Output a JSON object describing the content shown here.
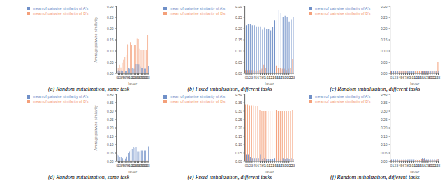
{
  "chart_data": [
    {
      "type": "bar",
      "title": "(a) Random initialization, same task",
      "xlabel": "layer",
      "ylabel": "Average pairwise similarity",
      "categories": [
        "0",
        "1",
        "2",
        "3",
        "4",
        "5",
        "6",
        "7",
        "8",
        "9",
        "10",
        "11",
        "12",
        "13",
        "14",
        "15",
        "16",
        "17",
        "18",
        "19",
        "20",
        "21",
        "22",
        "23"
      ],
      "series": [
        {
          "name": "mean of pairwise similarity of B's",
          "color": "#F4A07A",
          "values": [
            0.02,
            0.025,
            0.038,
            0.026,
            0.048,
            0.06,
            0.075,
            0.082,
            0.13,
            0.118,
            0.14,
            0.128,
            0.138,
            0.127,
            0.128,
            0.155,
            0.153,
            0.11,
            0.105,
            0.105,
            0.104,
            0.104,
            0.104,
            0.172
          ]
        },
        {
          "name": "mean of pairwise similarity of A's",
          "color": "#7090C8",
          "values": [
            0.01,
            0.014,
            0.01,
            0.013,
            0.01,
            0.01,
            0.01,
            0.01,
            0.024,
            0.02,
            0.02,
            0.025,
            0.02,
            0.02,
            0.044,
            0.044,
            0.04,
            0.03,
            0.025,
            0.025,
            0.02,
            0.02,
            0.02,
            0.033
          ]
        }
      ],
      "ylim": [
        0,
        0.3
      ],
      "yticks": [
        {
          "value": 0,
          "label": "0.00"
        },
        0.05,
        {
          "value": 0.1,
          "label": "0.10"
        },
        0.15,
        {
          "value": 0.2,
          "label": "0.20"
        },
        0.25,
        {
          "value": 0.3,
          "label": "0.30"
        }
      ],
      "legend": "upper left",
      "grid": false
    },
    {
      "type": "bar",
      "title": "(b) Fixed initialization, different tasks",
      "xlabel": "layer",
      "categories": [
        "0",
        "1",
        "2",
        "3",
        "4",
        "5",
        "6",
        "7",
        "8",
        "9",
        "10",
        "11",
        "12",
        "13",
        "14",
        "15",
        "16",
        "17",
        "18",
        "19",
        "20",
        "21",
        "22",
        "23"
      ],
      "series": [
        {
          "name": "mean of pairwise similarity of B's",
          "color": "#F4A07A",
          "values": [
            0.015,
            0.015,
            0.015,
            0.015,
            0.015,
            0.013,
            0.013,
            0.015,
            0.02,
            0.038,
            0.025,
            0.025,
            0.025,
            0.025,
            0.04,
            0.035,
            0.025,
            0.025,
            0.02,
            0.02,
            0.015,
            0.02,
            0.025,
            0.065
          ]
        },
        {
          "name": "mean of pairwise similarity of A's",
          "color": "#7090C8",
          "values": [
            0.215,
            0.22,
            0.222,
            0.215,
            0.215,
            0.21,
            0.21,
            0.21,
            0.195,
            0.205,
            0.2,
            0.197,
            0.192,
            0.207,
            0.237,
            0.242,
            0.282,
            0.272,
            0.252,
            0.257,
            0.252,
            0.232,
            0.242,
            0.252
          ]
        }
      ],
      "ylim": [
        0,
        0.3
      ],
      "yticks": [
        {
          "value": 0,
          "label": "0.00"
        },
        0.05,
        {
          "value": 0.1,
          "label": "0.10"
        },
        0.15,
        {
          "value": 0.2,
          "label": "0.20"
        },
        0.25,
        {
          "value": 0.3,
          "label": "0.30"
        }
      ],
      "legend": "upper left",
      "grid": false
    },
    {
      "type": "bar",
      "title": "(c) Random initialization, different tasks",
      "xlabel": "layer",
      "categories": [
        "0",
        "1",
        "2",
        "3",
        "4",
        "5",
        "6",
        "7",
        "8",
        "9",
        "10",
        "11",
        "12",
        "13",
        "14",
        "15",
        "16",
        "17",
        "18",
        "19",
        "20",
        "21",
        "22",
        "23"
      ],
      "series": [
        {
          "name": "mean of pairwise similarity of B's",
          "color": "#F4A07A",
          "values": [
            0.012,
            0.01,
            0.01,
            0.01,
            0.01,
            0.01,
            0.01,
            0.01,
            0.01,
            0.01,
            0.01,
            0.01,
            0.01,
            0.01,
            0.012,
            0.01,
            0.012,
            0.012,
            0.012,
            0.012,
            0.012,
            0.012,
            0.012,
            0.05
          ]
        },
        {
          "name": "mean of pairwise similarity of A's",
          "color": "#7090C8",
          "values": [
            0.01,
            0.01,
            0.01,
            0.01,
            0.01,
            0.01,
            0.01,
            0.01,
            0.01,
            0.01,
            0.01,
            0.01,
            0.01,
            0.01,
            0.01,
            0.01,
            0.01,
            0.01,
            0.01,
            0.01,
            0.01,
            0.01,
            0.01,
            0.01
          ]
        }
      ],
      "ylim": [
        0,
        0.3
      ],
      "yticks": [
        {
          "value": 0,
          "label": "0.00"
        },
        0.05,
        {
          "value": 0.1,
          "label": "0.10"
        },
        0.15,
        {
          "value": 0.2,
          "label": "0.20"
        },
        0.25,
        {
          "value": 0.3,
          "label": "0.30"
        }
      ],
      "legend": "upper left",
      "grid": false
    },
    {
      "type": "bar",
      "title": "(d) Random initialization, same task",
      "xlabel": "layer",
      "ylabel": "Average pairwise similarity",
      "categories": [
        "0",
        "1",
        "2",
        "3",
        "4",
        "5",
        "6",
        "7",
        "8",
        "9",
        "10",
        "11",
        "12",
        "13",
        "14",
        "15",
        "16",
        "17",
        "18",
        "19",
        "20",
        "21",
        "22",
        "23"
      ],
      "series": [
        {
          "name": "mean of pairwise similarity of B's",
          "color": "#F4A07A",
          "values": [
            0.005,
            0.005,
            0.005,
            0.005,
            0.005,
            0.005,
            0.005,
            0.005,
            0.005,
            0.005,
            0.005,
            0.005,
            0.005,
            0.005,
            0.005,
            0.005,
            0.005,
            0.005,
            0.005,
            0.005,
            0.005,
            0.005,
            0.005,
            0.005
          ]
        },
        {
          "name": "mean of pairwise similarity of A's",
          "color": "#7090C8",
          "values": [
            0.04,
            0.035,
            0.025,
            0.025,
            0.02,
            0.02,
            0.018,
            0.03,
            0.05,
            0.06,
            0.07,
            0.075,
            0.085,
            0.08,
            0.085,
            0.06,
            0.06,
            0.065,
            0.065,
            0.065,
            0.065,
            0.065,
            0.065,
            0.09
          ]
        }
      ],
      "ylim": [
        0,
        0.4
      ],
      "yticks": [
        {
          "value": 0,
          "label": "0.00"
        },
        0.05,
        {
          "value": 0.1,
          "label": "0.10"
        },
        0.15,
        {
          "value": 0.2,
          "label": "0.20"
        },
        0.25,
        {
          "value": 0.3,
          "label": "0.30"
        },
        0.35,
        {
          "value": 0.4,
          "label": "0.40"
        }
      ],
      "legend": "upper left",
      "grid": false
    },
    {
      "type": "bar",
      "title": "(e) Fixed initialization, different tasks",
      "xlabel": "layer",
      "categories": [
        "0",
        "1",
        "2",
        "3",
        "4",
        "5",
        "6",
        "7",
        "8",
        "9",
        "10",
        "11",
        "12",
        "13",
        "14",
        "15",
        "16",
        "17",
        "18",
        "19",
        "20",
        "21",
        "22",
        "23"
      ],
      "series": [
        {
          "name": "mean of pairwise similarity of B's",
          "color": "#F4A07A",
          "values": [
            0.34,
            0.34,
            0.335,
            0.335,
            0.335,
            0.33,
            0.33,
            0.305,
            0.3,
            0.3,
            0.3,
            0.3,
            0.3,
            0.3,
            0.305,
            0.305,
            0.3,
            0.3,
            0.3,
            0.3,
            0.3,
            0.3,
            0.3,
            0.305
          ]
        },
        {
          "name": "mean of pairwise similarity of A's",
          "color": "#7090C8",
          "values": [
            0.04,
            0.04,
            0.025,
            0.02,
            0.02,
            0.02,
            0.02,
            0.04,
            0.015,
            0.02,
            0.015,
            0.015,
            0.015,
            0.015,
            0.02,
            0.02,
            0.02,
            0.015,
            0.02,
            0.015,
            0.02,
            0.015,
            0.02,
            0.015
          ]
        }
      ],
      "ylim": [
        0,
        0.4
      ],
      "yticks": [
        {
          "value": 0,
          "label": "0.00"
        },
        0.05,
        {
          "value": 0.1,
          "label": "0.10"
        },
        0.15,
        {
          "value": 0.2,
          "label": "0.20"
        },
        0.25,
        {
          "value": 0.3,
          "label": "0.30"
        },
        0.35,
        {
          "value": 0.4,
          "label": "0.40"
        }
      ],
      "legend": "upper left",
      "grid": false
    },
    {
      "type": "bar",
      "title": "(f) Random initialization, different tasks",
      "xlabel": "layer",
      "categories": [
        "0",
        "1",
        "2",
        "3",
        "4",
        "5",
        "6",
        "7",
        "8",
        "9",
        "10",
        "11",
        "12",
        "13",
        "14",
        "15",
        "16",
        "17",
        "18",
        "19",
        "20",
        "21",
        "22",
        "23"
      ],
      "series": [
        {
          "name": "mean of pairwise similarity of B's",
          "color": "#F4A07A",
          "values": [
            0.008,
            0.008,
            0.008,
            0.008,
            0.008,
            0.008,
            0.008,
            0.008,
            0.008,
            0.008,
            0.008,
            0.008,
            0.008,
            0.008,
            0.008,
            0.015,
            0.015,
            0.008,
            0.008,
            0.008,
            0.008,
            0.008,
            0.008,
            0.015
          ]
        },
        {
          "name": "mean of pairwise similarity of A's",
          "color": "#7090C8",
          "values": [
            0.01,
            0.01,
            0.01,
            0.01,
            0.01,
            0.01,
            0.01,
            0.01,
            0.01,
            0.01,
            0.01,
            0.01,
            0.01,
            0.01,
            0.01,
            0.02,
            0.02,
            0.01,
            0.01,
            0.01,
            0.01,
            0.01,
            0.01,
            0.015
          ]
        }
      ],
      "ylim": [
        0,
        0.4
      ],
      "yticks": [
        {
          "value": 0,
          "label": "0.00"
        },
        0.05,
        {
          "value": 0.1,
          "label": "0.10"
        },
        0.15,
        {
          "value": 0.2,
          "label": "0.20"
        },
        0.25,
        {
          "value": 0.3,
          "label": "0.30"
        },
        0.35,
        {
          "value": 0.4,
          "label": "0.40"
        }
      ],
      "legend": "upper left",
      "grid": false
    }
  ]
}
